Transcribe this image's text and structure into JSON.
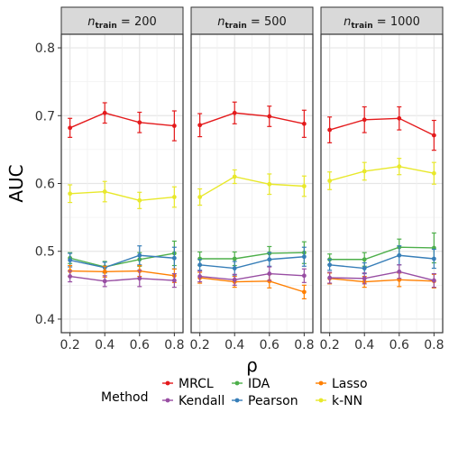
{
  "chart_data": {
    "type": "line",
    "ylabel": "AUC",
    "xlabel": "ρ",
    "ylim": [
      0.38,
      0.82
    ],
    "yticks": [
      0.4,
      0.5,
      0.6,
      0.7,
      0.8
    ],
    "xlim": [
      0.15,
      0.85
    ],
    "xticks": [
      0.2,
      0.4,
      0.6,
      0.8
    ],
    "grid": true,
    "legend": {
      "title": "Method",
      "position": "bottom",
      "order": [
        "MRCL",
        "Kendall",
        "IDA",
        "Pearson",
        "Lasso",
        "k-NN"
      ]
    },
    "colors": {
      "MRCL": "#E41A1C",
      "Pearson": "#377EB8",
      "Kendall": "#984EA3",
      "Lasso": "#FF7F00",
      "IDA": "#4DAF4A",
      "k-NN": "#E8E82A"
    },
    "panels": [
      {
        "strip_prefix": "n",
        "strip_sub": "train",
        "strip_suffix": " = 200",
        "series": [
          {
            "name": "MRCL",
            "x": [
              0.2,
              0.4,
              0.6,
              0.8
            ],
            "y": [
              0.682,
              0.704,
              0.69,
              0.685
            ],
            "err": [
              0.014,
              0.015,
              0.015,
              0.022
            ]
          },
          {
            "name": "k-NN",
            "x": [
              0.2,
              0.4,
              0.6,
              0.8
            ],
            "y": [
              0.585,
              0.588,
              0.575,
              0.58
            ],
            "err": [
              0.013,
              0.015,
              0.012,
              0.015
            ]
          },
          {
            "name": "IDA",
            "x": [
              0.2,
              0.4,
              0.6,
              0.8
            ],
            "y": [
              0.49,
              0.477,
              0.488,
              0.497
            ],
            "err": [
              0.008,
              0.008,
              0.01,
              0.018
            ]
          },
          {
            "name": "Pearson",
            "x": [
              0.2,
              0.4,
              0.6,
              0.8
            ],
            "y": [
              0.487,
              0.476,
              0.494,
              0.49
            ],
            "err": [
              0.01,
              0.008,
              0.014,
              0.016
            ]
          },
          {
            "name": "Lasso",
            "x": [
              0.2,
              0.4,
              0.6,
              0.8
            ],
            "y": [
              0.471,
              0.47,
              0.471,
              0.464
            ],
            "err": [
              0.008,
              0.008,
              0.008,
              0.01
            ]
          },
          {
            "name": "Kendall",
            "x": [
              0.2,
              0.4,
              0.6,
              0.8
            ],
            "y": [
              0.463,
              0.456,
              0.46,
              0.457
            ],
            "err": [
              0.008,
              0.008,
              0.012,
              0.01
            ]
          }
        ]
      },
      {
        "strip_prefix": "n",
        "strip_sub": "train",
        "strip_suffix": " = 500",
        "series": [
          {
            "name": "MRCL",
            "x": [
              0.2,
              0.4,
              0.6,
              0.8
            ],
            "y": [
              0.686,
              0.704,
              0.699,
              0.688
            ],
            "err": [
              0.017,
              0.016,
              0.015,
              0.02
            ]
          },
          {
            "name": "k-NN",
            "x": [
              0.2,
              0.4,
              0.6,
              0.8
            ],
            "y": [
              0.58,
              0.61,
              0.599,
              0.596
            ],
            "err": [
              0.012,
              0.01,
              0.015,
              0.015
            ]
          },
          {
            "name": "IDA",
            "x": [
              0.2,
              0.4,
              0.6,
              0.8
            ],
            "y": [
              0.489,
              0.489,
              0.497,
              0.498
            ],
            "err": [
              0.01,
              0.01,
              0.01,
              0.016
            ]
          },
          {
            "name": "Pearson",
            "x": [
              0.2,
              0.4,
              0.6,
              0.8
            ],
            "y": [
              0.48,
              0.475,
              0.488,
              0.492
            ],
            "err": [
              0.008,
              0.01,
              0.01,
              0.014
            ]
          },
          {
            "name": "Lasso",
            "x": [
              0.2,
              0.4,
              0.6,
              0.8
            ],
            "y": [
              0.461,
              0.455,
              0.456,
              0.44
            ],
            "err": [
              0.008,
              0.008,
              0.01,
              0.01
            ]
          },
          {
            "name": "Kendall",
            "x": [
              0.2,
              0.4,
              0.6,
              0.8
            ],
            "y": [
              0.463,
              0.458,
              0.467,
              0.464
            ],
            "err": [
              0.008,
              0.008,
              0.01,
              0.01
            ]
          }
        ]
      },
      {
        "strip_prefix": "n",
        "strip_sub": "train",
        "strip_suffix": " = 1000",
        "series": [
          {
            "name": "MRCL",
            "x": [
              0.2,
              0.4,
              0.6,
              0.8
            ],
            "y": [
              0.679,
              0.694,
              0.696,
              0.671
            ],
            "err": [
              0.019,
              0.019,
              0.017,
              0.022
            ]
          },
          {
            "name": "k-NN",
            "x": [
              0.2,
              0.4,
              0.6,
              0.8
            ],
            "y": [
              0.604,
              0.618,
              0.625,
              0.615
            ],
            "err": [
              0.013,
              0.013,
              0.012,
              0.016
            ]
          },
          {
            "name": "IDA",
            "x": [
              0.2,
              0.4,
              0.6,
              0.8
            ],
            "y": [
              0.488,
              0.488,
              0.506,
              0.505
            ],
            "err": [
              0.008,
              0.01,
              0.012,
              0.022
            ]
          },
          {
            "name": "Pearson",
            "x": [
              0.2,
              0.4,
              0.6,
              0.8
            ],
            "y": [
              0.48,
              0.475,
              0.494,
              0.489
            ],
            "err": [
              0.008,
              0.008,
              0.014,
              0.014
            ]
          },
          {
            "name": "Lasso",
            "x": [
              0.2,
              0.4,
              0.6,
              0.8
            ],
            "y": [
              0.46,
              0.455,
              0.458,
              0.456
            ],
            "err": [
              0.008,
              0.008,
              0.01,
              0.01
            ]
          },
          {
            "name": "Kendall",
            "x": [
              0.2,
              0.4,
              0.6,
              0.8
            ],
            "y": [
              0.461,
              0.46,
              0.47,
              0.457
            ],
            "err": [
              0.008,
              0.008,
              0.01,
              0.01
            ]
          }
        ]
      }
    ]
  }
}
